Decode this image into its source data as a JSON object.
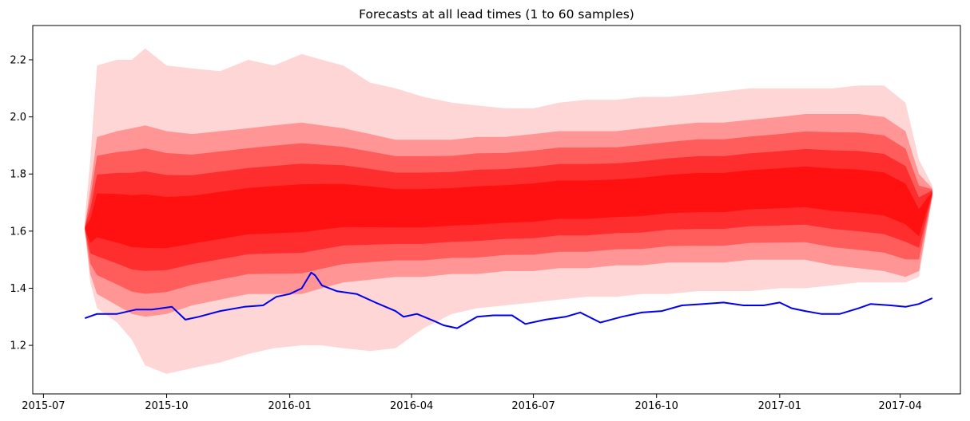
{
  "chart_data": {
    "type": "line",
    "title": "Forecasts at all lead times (1 to 60 samples)",
    "xlabel": "",
    "ylabel": "",
    "x_range": [
      "2015-06-23",
      "2017-05-16"
    ],
    "ylim": [
      1.03,
      2.32
    ],
    "x_ticks": [
      "2015-07",
      "2015-10",
      "2016-01",
      "2016-04",
      "2016-07",
      "2016-10",
      "2017-01",
      "2017-04"
    ],
    "y_ticks": [
      1.2,
      1.4,
      1.6,
      1.8,
      2.0,
      2.2
    ],
    "grid": false,
    "legend": "none",
    "colors": {
      "observed": "#0000ee",
      "forecast": "#ff0000"
    },
    "series": [
      {
        "role": "observed",
        "x": [
          "2015-08-01",
          "2015-08-10",
          "2015-08-25",
          "2015-09-08",
          "2015-09-20",
          "2015-10-05",
          "2015-10-15",
          "2015-10-25",
          "2015-11-10",
          "2015-11-28",
          "2015-12-12",
          "2015-12-22",
          "2016-01-01",
          "2016-01-10",
          "2016-01-17",
          "2016-01-20",
          "2016-01-25",
          "2016-02-05",
          "2016-02-20",
          "2016-03-05",
          "2016-03-20",
          "2016-03-26",
          "2016-04-05",
          "2016-04-18",
          "2016-04-25",
          "2016-05-05",
          "2016-05-20",
          "2016-06-01",
          "2016-06-15",
          "2016-06-25",
          "2016-07-10",
          "2016-07-25",
          "2016-08-05",
          "2016-08-20",
          "2016-09-05",
          "2016-09-20",
          "2016-10-05",
          "2016-10-20",
          "2016-11-05",
          "2016-11-20",
          "2016-12-05",
          "2016-12-20",
          "2017-01-01",
          "2017-01-10",
          "2017-01-20",
          "2017-02-01",
          "2017-02-15",
          "2017-03-01",
          "2017-03-10",
          "2017-03-25",
          "2017-04-05",
          "2017-04-15",
          "2017-04-25"
        ],
        "values": [
          1.295,
          1.31,
          1.31,
          1.325,
          1.325,
          1.335,
          1.29,
          1.3,
          1.32,
          1.335,
          1.34,
          1.37,
          1.38,
          1.4,
          1.455,
          1.445,
          1.41,
          1.39,
          1.38,
          1.35,
          1.32,
          1.3,
          1.31,
          1.285,
          1.27,
          1.26,
          1.3,
          1.305,
          1.305,
          1.275,
          1.29,
          1.3,
          1.315,
          1.28,
          1.3,
          1.315,
          1.32,
          1.34,
          1.345,
          1.35,
          1.34,
          1.34,
          1.35,
          1.33,
          1.32,
          1.31,
          1.31,
          1.33,
          1.345,
          1.34,
          1.335,
          1.345,
          1.365
        ]
      },
      {
        "role": "forecast",
        "x": [
          "2015-08-01",
          "2015-08-05",
          "2015-08-10",
          "2015-08-25",
          "2015-09-05",
          "2015-09-15",
          "2015-10-01",
          "2015-10-20",
          "2015-11-10",
          "2015-12-01",
          "2015-12-20",
          "2016-01-10",
          "2016-01-25",
          "2016-02-10",
          "2016-03-01",
          "2016-03-20",
          "2016-04-10",
          "2016-05-01",
          "2016-05-20",
          "2016-06-10",
          "2016-07-01",
          "2016-07-20",
          "2016-08-10",
          "2016-09-01",
          "2016-09-20",
          "2016-10-10",
          "2016-11-01",
          "2016-11-20",
          "2016-12-10",
          "2017-01-01",
          "2017-01-20",
          "2017-02-10",
          "2017-03-01",
          "2017-03-20",
          "2017-04-05",
          "2017-04-15",
          "2017-04-25"
        ],
        "outer_upper": [
          1.65,
          1.85,
          2.18,
          2.2,
          2.2,
          2.24,
          2.18,
          2.17,
          2.16,
          2.2,
          2.18,
          2.22,
          2.2,
          2.18,
          2.12,
          2.1,
          2.07,
          2.05,
          2.04,
          2.03,
          2.03,
          2.05,
          2.06,
          2.06,
          2.07,
          2.07,
          2.08,
          2.09,
          2.1,
          2.1,
          2.1,
          2.1,
          2.11,
          2.11,
          2.05,
          1.85,
          1.76
        ],
        "inner_upper": [
          1.62,
          1.75,
          1.93,
          1.95,
          1.96,
          1.97,
          1.95,
          1.94,
          1.95,
          1.96,
          1.97,
          1.98,
          1.97,
          1.96,
          1.94,
          1.92,
          1.92,
          1.92,
          1.93,
          1.93,
          1.94,
          1.95,
          1.95,
          1.95,
          1.96,
          1.97,
          1.98,
          1.98,
          1.99,
          2.0,
          2.01,
          2.01,
          2.01,
          2.0,
          1.95,
          1.8,
          1.75
        ],
        "inner_lower": [
          1.6,
          1.45,
          1.38,
          1.34,
          1.31,
          1.3,
          1.31,
          1.34,
          1.36,
          1.38,
          1.38,
          1.38,
          1.4,
          1.42,
          1.43,
          1.44,
          1.44,
          1.45,
          1.45,
          1.46,
          1.46,
          1.47,
          1.47,
          1.48,
          1.48,
          1.49,
          1.49,
          1.49,
          1.5,
          1.5,
          1.5,
          1.48,
          1.47,
          1.46,
          1.44,
          1.46,
          1.72
        ],
        "outer_lower": [
          1.6,
          1.42,
          1.33,
          1.28,
          1.22,
          1.13,
          1.1,
          1.12,
          1.14,
          1.17,
          1.19,
          1.2,
          1.2,
          1.19,
          1.18,
          1.19,
          1.26,
          1.31,
          1.33,
          1.34,
          1.35,
          1.36,
          1.37,
          1.37,
          1.38,
          1.38,
          1.39,
          1.39,
          1.39,
          1.4,
          1.4,
          1.41,
          1.42,
          1.42,
          1.42,
          1.44,
          1.72
        ]
      }
    ]
  }
}
